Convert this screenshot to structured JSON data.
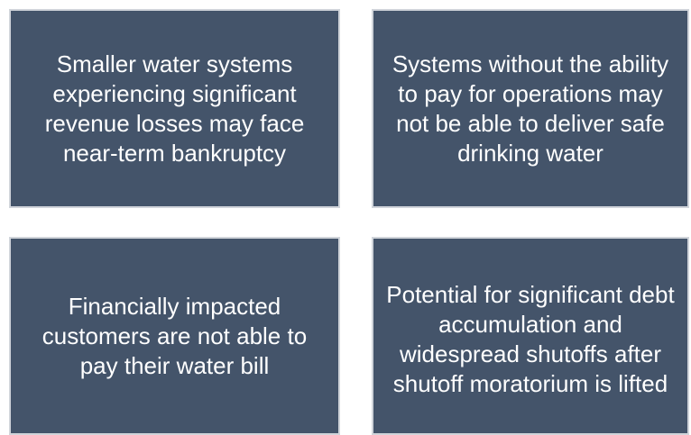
{
  "boxes": [
    {
      "text": "Smaller water systems experiencing significant revenue losses may face near-term bankruptcy"
    },
    {
      "text": "Systems without the ability to pay for operations may not be able to deliver safe drinking water"
    },
    {
      "text": "Financially impacted customers are not able to pay their water bill"
    },
    {
      "text": "Potential for significant debt accumulation and widespread shutoffs after shutoff moratorium is lifted"
    }
  ]
}
